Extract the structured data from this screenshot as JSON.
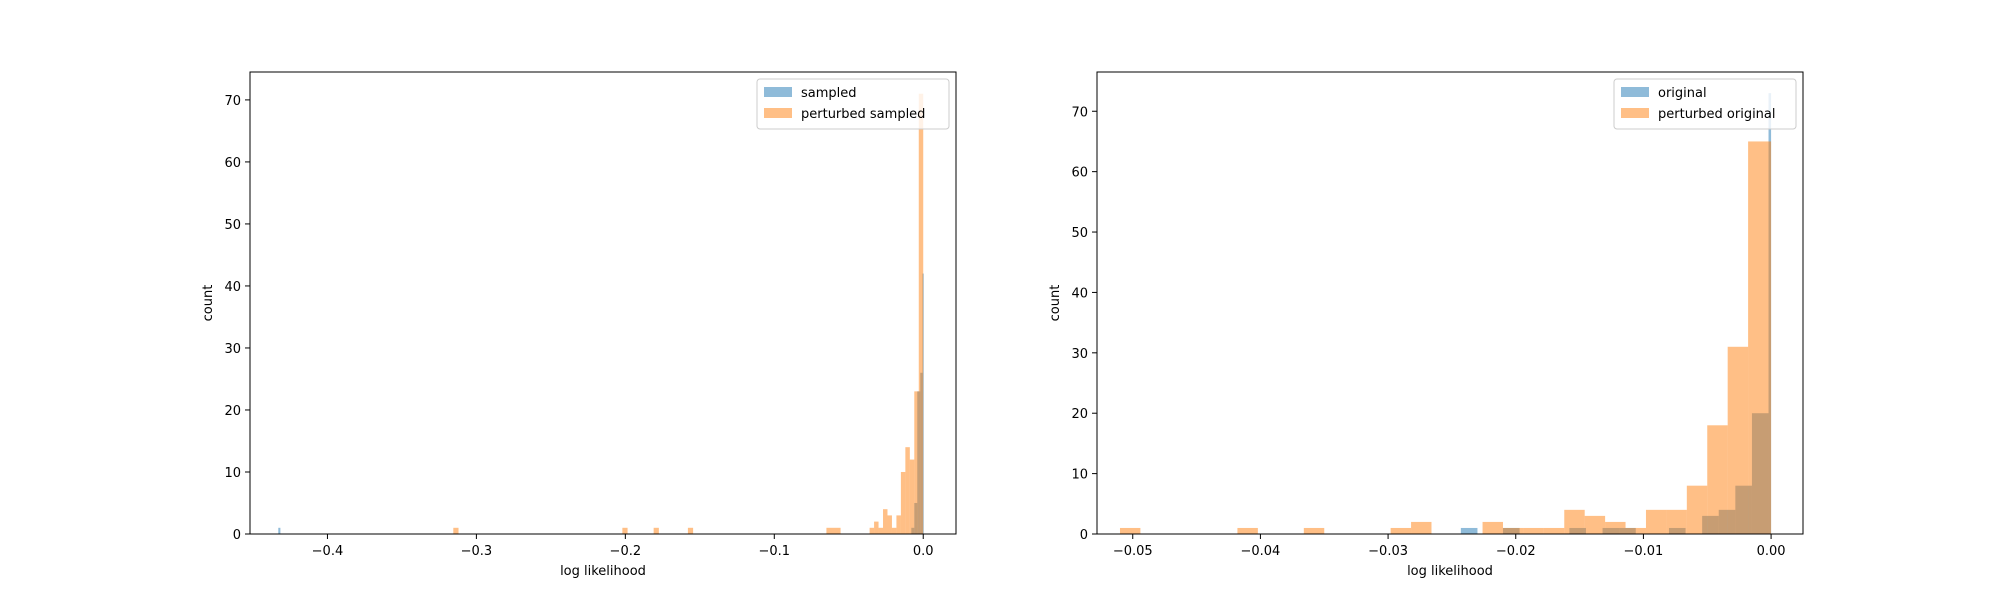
{
  "chart_data": [
    {
      "type": "bar",
      "xlabel": "log likelihood",
      "ylabel": "count",
      "xlim": [
        -0.452,
        0.022
      ],
      "ylim": [
        0,
        74.5
      ],
      "xticks": [
        -0.4,
        -0.3,
        -0.2,
        -0.1,
        0.0
      ],
      "xtick_labels": [
        "−0.4",
        "−0.3",
        "−0.2",
        "−0.1",
        "0.0"
      ],
      "yticks": [
        0,
        10,
        20,
        30,
        40,
        50,
        60,
        70
      ],
      "ytick_labels": [
        "0",
        "10",
        "20",
        "30",
        "40",
        "50",
        "60",
        "70"
      ],
      "legend_position": "top-right",
      "series": [
        {
          "name": "sampled",
          "color": "#1f77b4",
          "bins": [
            {
              "x0": -0.433,
              "x1": -0.4316,
              "count": 1
            },
            {
              "x0": -0.008,
              "x1": -0.006,
              "count": 1
            },
            {
              "x0": -0.006,
              "x1": -0.004,
              "count": 5
            },
            {
              "x0": -0.004,
              "x1": -0.002,
              "count": 23
            },
            {
              "x0": -0.002,
              "x1": -0.0005,
              "count": 26
            },
            {
              "x0": -0.0005,
              "x1": 0.0,
              "count": 42
            }
          ]
        },
        {
          "name": "perturbed sampled",
          "color": "#ff7f0e",
          "bins": [
            {
              "x0": -0.3155,
              "x1": -0.312,
              "count": 1
            },
            {
              "x0": -0.202,
              "x1": -0.1985,
              "count": 1
            },
            {
              "x0": -0.181,
              "x1": -0.1775,
              "count": 1
            },
            {
              "x0": -0.158,
              "x1": -0.1545,
              "count": 1
            },
            {
              "x0": -0.065,
              "x1": -0.0555,
              "count": 1
            },
            {
              "x0": -0.036,
              "x1": -0.033,
              "count": 1
            },
            {
              "x0": -0.033,
              "x1": -0.03,
              "count": 2
            },
            {
              "x0": -0.03,
              "x1": -0.027,
              "count": 1
            },
            {
              "x0": -0.027,
              "x1": -0.024,
              "count": 4
            },
            {
              "x0": -0.024,
              "x1": -0.021,
              "count": 3
            },
            {
              "x0": -0.021,
              "x1": -0.018,
              "count": 1
            },
            {
              "x0": -0.018,
              "x1": -0.015,
              "count": 3
            },
            {
              "x0": -0.015,
              "x1": -0.012,
              "count": 10
            },
            {
              "x0": -0.012,
              "x1": -0.009,
              "count": 14
            },
            {
              "x0": -0.009,
              "x1": -0.006,
              "count": 12
            },
            {
              "x0": -0.006,
              "x1": -0.003,
              "count": 23
            },
            {
              "x0": -0.003,
              "x1": 0.0,
              "count": 71
            }
          ]
        }
      ]
    },
    {
      "type": "bar",
      "xlabel": "log likelihood",
      "ylabel": "count",
      "xlim": [
        -0.0528,
        0.0025
      ],
      "ylim": [
        0,
        76.5
      ],
      "xticks": [
        -0.05,
        -0.04,
        -0.03,
        -0.02,
        -0.01,
        0.0
      ],
      "xtick_labels": [
        "−0.05",
        "−0.04",
        "−0.03",
        "−0.02",
        "−0.01",
        "0.00"
      ],
      "yticks": [
        0,
        10,
        20,
        30,
        40,
        50,
        60,
        70
      ],
      "ytick_labels": [
        "0",
        "10",
        "20",
        "30",
        "40",
        "50",
        "60",
        "70"
      ],
      "legend_position": "top-right",
      "series": [
        {
          "name": "original",
          "color": "#1f77b4",
          "bins": [
            {
              "x0": -0.0243,
              "x1": -0.023,
              "count": 1
            },
            {
              "x0": -0.021,
              "x1": -0.0197,
              "count": 1
            },
            {
              "x0": -0.0158,
              "x1": -0.0145,
              "count": 1
            },
            {
              "x0": -0.0132,
              "x1": -0.0119,
              "count": 1
            },
            {
              "x0": -0.0119,
              "x1": -0.0106,
              "count": 1
            },
            {
              "x0": -0.008,
              "x1": -0.0067,
              "count": 1
            },
            {
              "x0": -0.0054,
              "x1": -0.0041,
              "count": 3
            },
            {
              "x0": -0.0041,
              "x1": -0.0028,
              "count": 4
            },
            {
              "x0": -0.0028,
              "x1": -0.0015,
              "count": 8
            },
            {
              "x0": -0.0015,
              "x1": -0.0002,
              "count": 20
            },
            {
              "x0": -0.0002,
              "x1": 0.0,
              "count": 73
            }
          ]
        },
        {
          "name": "perturbed original",
          "color": "#ff7f0e",
          "bins": [
            {
              "x0": -0.051,
              "x1": -0.0494,
              "count": 1
            },
            {
              "x0": -0.0418,
              "x1": -0.0402,
              "count": 1
            },
            {
              "x0": -0.0366,
              "x1": -0.035,
              "count": 1
            },
            {
              "x0": -0.0298,
              "x1": -0.0282,
              "count": 1
            },
            {
              "x0": -0.0282,
              "x1": -0.0266,
              "count": 2
            },
            {
              "x0": -0.0226,
              "x1": -0.021,
              "count": 2
            },
            {
              "x0": -0.021,
              "x1": -0.0194,
              "count": 1
            },
            {
              "x0": -0.0194,
              "x1": -0.0178,
              "count": 1
            },
            {
              "x0": -0.0178,
              "x1": -0.0162,
              "count": 1
            },
            {
              "x0": -0.0162,
              "x1": -0.0146,
              "count": 4
            },
            {
              "x0": -0.0146,
              "x1": -0.013,
              "count": 3
            },
            {
              "x0": -0.013,
              "x1": -0.0114,
              "count": 2
            },
            {
              "x0": -0.0114,
              "x1": -0.0098,
              "count": 1
            },
            {
              "x0": -0.0098,
              "x1": -0.0082,
              "count": 4
            },
            {
              "x0": -0.0082,
              "x1": -0.0066,
              "count": 4
            },
            {
              "x0": -0.0066,
              "x1": -0.005,
              "count": 8
            },
            {
              "x0": -0.005,
              "x1": -0.0034,
              "count": 18
            },
            {
              "x0": -0.0034,
              "x1": -0.0018,
              "count": 31
            },
            {
              "x0": -0.0018,
              "x1": -0.0002,
              "count": 65
            },
            {
              "x0": -0.0002,
              "x1": 0.0,
              "count": 65
            }
          ]
        }
      ]
    }
  ]
}
